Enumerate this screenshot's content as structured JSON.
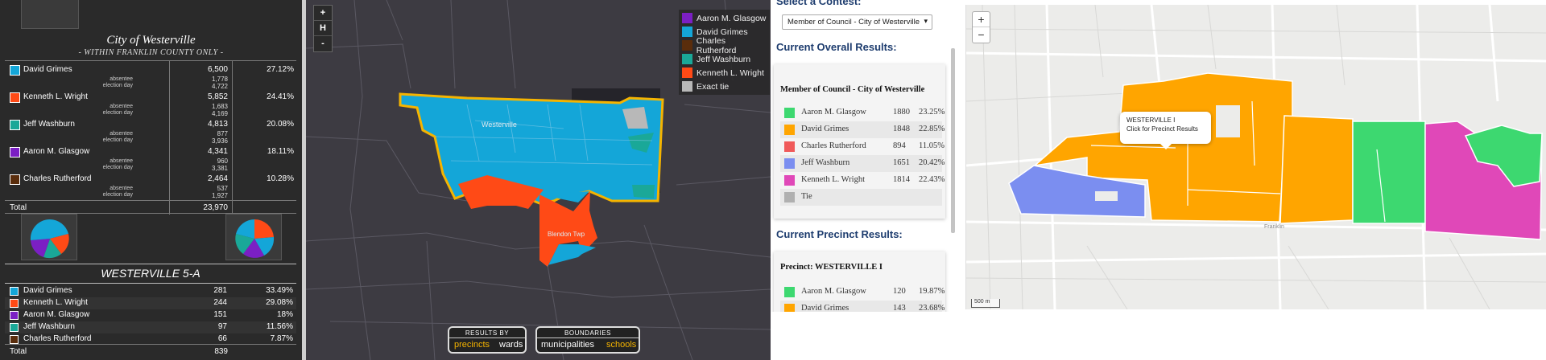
{
  "panel_results": {
    "title": "City of Westerville",
    "subtitle": "- WITHIN FRANKLIN COUNTY ONLY -",
    "absentee_label": "absentee",
    "election_day_label": "election day",
    "candidates": [
      {
        "name": "David Grimes",
        "color": "#14a6d8",
        "total": "6,500",
        "absentee": "1,778",
        "election_day": "4,722",
        "pct": "27.12%"
      },
      {
        "name": "Kenneth L. Wright",
        "color": "#ff4a16",
        "total": "5,852",
        "absentee": "1,683",
        "election_day": "4,169",
        "pct": "24.41%"
      },
      {
        "name": "Jeff Washburn",
        "color": "#1aa898",
        "total": "4,813",
        "absentee": "877",
        "election_day": "3,936",
        "pct": "20.08%"
      },
      {
        "name": "Aaron M. Glasgow",
        "color": "#7b1fc4",
        "total": "4,341",
        "absentee": "960",
        "election_day": "3,381",
        "pct": "18.11%"
      },
      {
        "name": "Charles Rutherford",
        "color": "#5a2d0c",
        "total": "2,464",
        "absentee": "537",
        "election_day": "1,927",
        "pct": "10.28%"
      }
    ],
    "total_label": "Total",
    "total_value": "23,970",
    "precinct_title": "WESTERVILLE 5-A",
    "precinct_rows": [
      {
        "name": "David Grimes",
        "color": "#14a6d8",
        "votes": "281",
        "pct": "33.49%"
      },
      {
        "name": "Kenneth L. Wright",
        "color": "#ff4a16",
        "votes": "244",
        "pct": "29.08%"
      },
      {
        "name": "Aaron M. Glasgow",
        "color": "#7b1fc4",
        "votes": "151",
        "pct": "18%"
      },
      {
        "name": "Jeff Washburn",
        "color": "#1aa898",
        "votes": "97",
        "pct": "11.56%"
      },
      {
        "name": "Charles Rutherford",
        "color": "#5a2d0c",
        "votes": "66",
        "pct": "7.87%"
      }
    ],
    "precinct_total_label": "Total",
    "precinct_total_value": "839"
  },
  "dark_map": {
    "zoom_in": "+",
    "home": "H",
    "zoom_out": "-",
    "place_label_1": "Westerville",
    "place_label_2": "Blendon Twp",
    "legend": [
      {
        "label": "Aaron M. Glasgow",
        "color": "#7b1fc4"
      },
      {
        "label": "David Grimes",
        "color": "#14a6d8"
      },
      {
        "label": "Charles Rutherford",
        "color": "#5a2d0c"
      },
      {
        "label": "Jeff Washburn",
        "color": "#1aa898"
      },
      {
        "label": "Kenneth L. Wright",
        "color": "#ff4a16"
      },
      {
        "label": "Exact tie",
        "color": "#b8b8b8"
      }
    ],
    "results_by": {
      "header": "RESULTS BY",
      "option_1": "precincts",
      "option_2": "wards"
    },
    "boundaries": {
      "header": "BOUNDARIES",
      "option_1": "municipalities",
      "option_2": "schools"
    }
  },
  "results_page": {
    "select_heading": "Select a Contest:",
    "select_value": "Member of Council - City of Westerville",
    "overall_heading": "Current Overall Results:",
    "overall_card_title": "Member of Council - City of Westerville",
    "overall_rows": [
      {
        "name": "Aaron M. Glasgow",
        "color": "#3dd870",
        "votes": "1880",
        "pct": "23.25%"
      },
      {
        "name": "David Grimes",
        "color": "#ffa500",
        "votes": "1848",
        "pct": "22.85%"
      },
      {
        "name": "Charles Rutherford",
        "color": "#f05a5a",
        "votes": "894",
        "pct": "11.05%"
      },
      {
        "name": "Jeff Washburn",
        "color": "#7b8ef0",
        "votes": "1651",
        "pct": "20.42%"
      },
      {
        "name": "Kenneth L. Wright",
        "color": "#e048b8",
        "votes": "1814",
        "pct": "22.43%"
      },
      {
        "name": "Tie",
        "color": "#b0b0b0",
        "votes": "",
        "pct": ""
      }
    ],
    "precinct_heading": "Current Precinct Results:",
    "precinct_card_title": "Precinct: WESTERVILLE I",
    "precinct_rows": [
      {
        "name": "Aaron M. Glasgow",
        "color": "#3dd870",
        "votes": "120",
        "pct": "19.87%"
      },
      {
        "name": "David Grimes",
        "color": "#ffa500",
        "votes": "143",
        "pct": "23.68%"
      }
    ]
  },
  "light_map": {
    "zoom_in": "+",
    "zoom_out": "−",
    "tooltip_title": "WESTERVILLE I",
    "tooltip_text": "Click for Precinct Results",
    "road_label": "Franklin",
    "scale_label": "500 m"
  }
}
